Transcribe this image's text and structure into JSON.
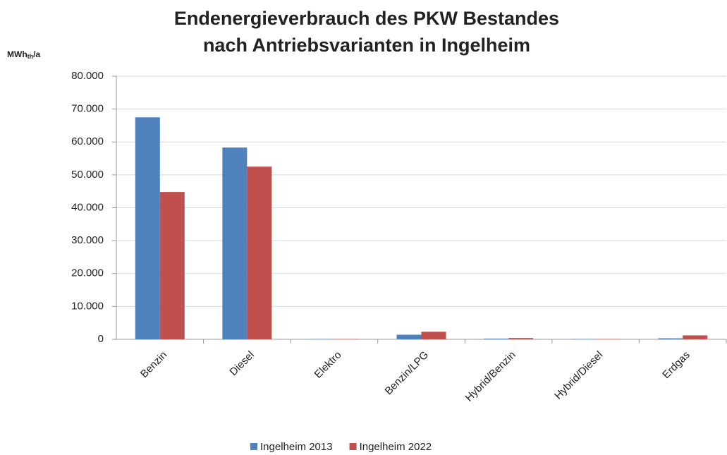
{
  "chart_data": {
    "type": "bar",
    "title": [
      "Endenergieverbrauch des PKW Bestandes",
      "nach Antriebsvarianten in Ingelheim"
    ],
    "y_label": [
      "MWh",
      "th",
      "/a"
    ],
    "categories": [
      "Benzin",
      "Diesel",
      "Elektro",
      "Benzin/LPG",
      "Hybrid/Benzin",
      "Hybrid/Diesel",
      "Erdgas"
    ],
    "series": [
      {
        "name": "Ingelheim 2013",
        "color": "#4f81bd",
        "values": [
          67500,
          58300,
          100,
          1400,
          200,
          100,
          300
        ]
      },
      {
        "name": "Ingelheim 2022",
        "color": "#c0504d",
        "values": [
          44800,
          52500,
          100,
          2300,
          400,
          100,
          1200
        ]
      }
    ],
    "ylim": [
      0,
      80000
    ],
    "yticks": [
      0,
      {
        "value": 10000,
        "label": "10.000"
      },
      {
        "value": 20000,
        "label": "20.000"
      },
      {
        "value": 30000,
        "label": "30.000"
      },
      {
        "value": 40000,
        "label": "40.000"
      },
      {
        "value": 50000,
        "label": "50.000"
      },
      {
        "value": 60000,
        "label": "60.000"
      },
      {
        "value": 70000,
        "label": "70.000"
      },
      {
        "value": 80000,
        "label": "80.000"
      }
    ],
    "grid": true,
    "legend": "bottom"
  }
}
